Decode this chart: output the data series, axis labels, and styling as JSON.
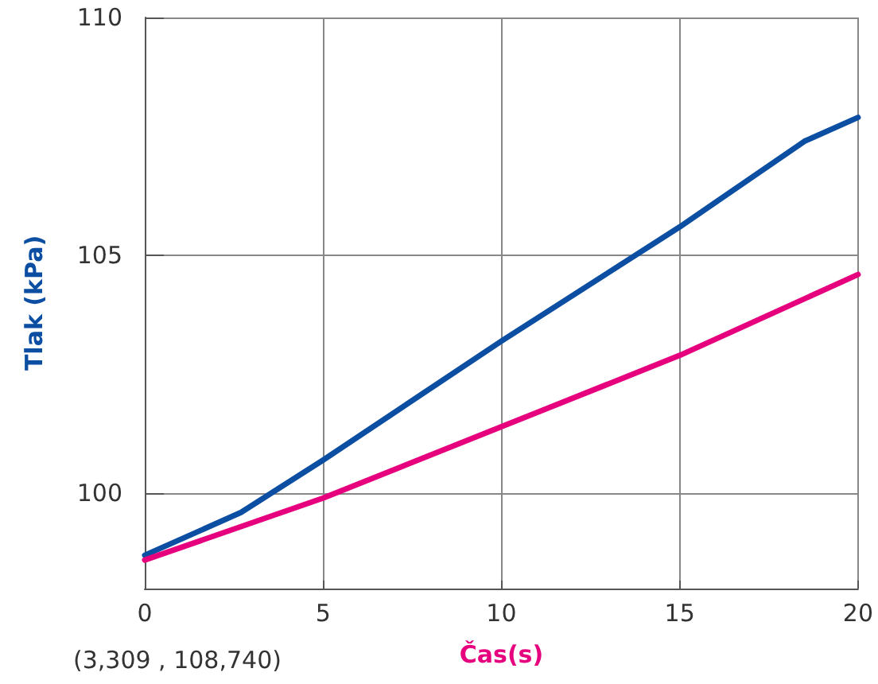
{
  "chart_data": {
    "type": "line",
    "xlabel": "Čas(s)",
    "ylabel": "Tlak (kPa)",
    "annotations": [
      "(3,309 , 108,740)"
    ],
    "xlim": [
      0,
      20
    ],
    "xticks": [
      0,
      5,
      10,
      15,
      20
    ],
    "ylim": [
      98,
      110
    ],
    "yticks": [
      100,
      105,
      110
    ],
    "grid": true,
    "marker": "none",
    "line_style": "solid",
    "series": [
      {
        "color": "#0b4ea2",
        "x": [
          0,
          2.7,
          5,
          10,
          15,
          18.5,
          20
        ],
        "values": [
          98.7,
          99.6,
          100.7,
          103.2,
          105.6,
          107.4,
          107.9
        ]
      },
      {
        "color": "#e6007e",
        "x": [
          0,
          5,
          10,
          15,
          20
        ],
        "values": [
          98.6,
          99.9,
          101.4,
          102.9,
          104.6
        ]
      }
    ]
  }
}
